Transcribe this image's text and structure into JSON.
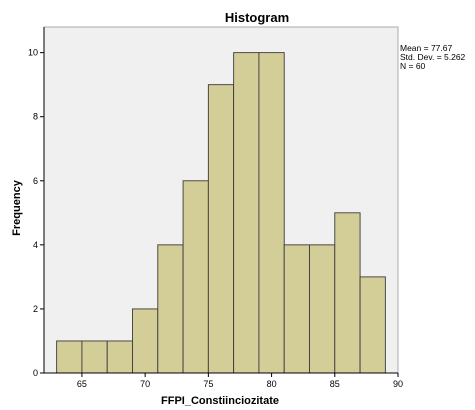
{
  "chart_data": {
    "type": "bar",
    "title": "Histogram",
    "xlabel": "FFPI_Constiinciozitate",
    "ylabel": "Frequency",
    "xlim": [
      62,
      90
    ],
    "ylim": [
      0,
      10.8
    ],
    "xticks": [
      65,
      70,
      75,
      80,
      85,
      90
    ],
    "yticks": [
      0,
      2,
      4,
      6,
      8,
      10
    ],
    "bin_width": 2,
    "bin_starts": [
      63,
      65,
      67,
      69,
      71,
      73,
      75,
      77,
      79,
      81,
      83,
      85,
      87
    ],
    "values": [
      1,
      1,
      1,
      2,
      4,
      6,
      9,
      10,
      10,
      4,
      4,
      5,
      3
    ],
    "stats": [
      "Mean = 77.67",
      "Std. Dev. = 5.262",
      "N = 60"
    ],
    "colors": {
      "plot_bg": "#f0f0f0",
      "bar_fill": "#d3ce97",
      "bar_stroke": "#3a3a3a",
      "axis": "#000000"
    },
    "grid": false
  }
}
